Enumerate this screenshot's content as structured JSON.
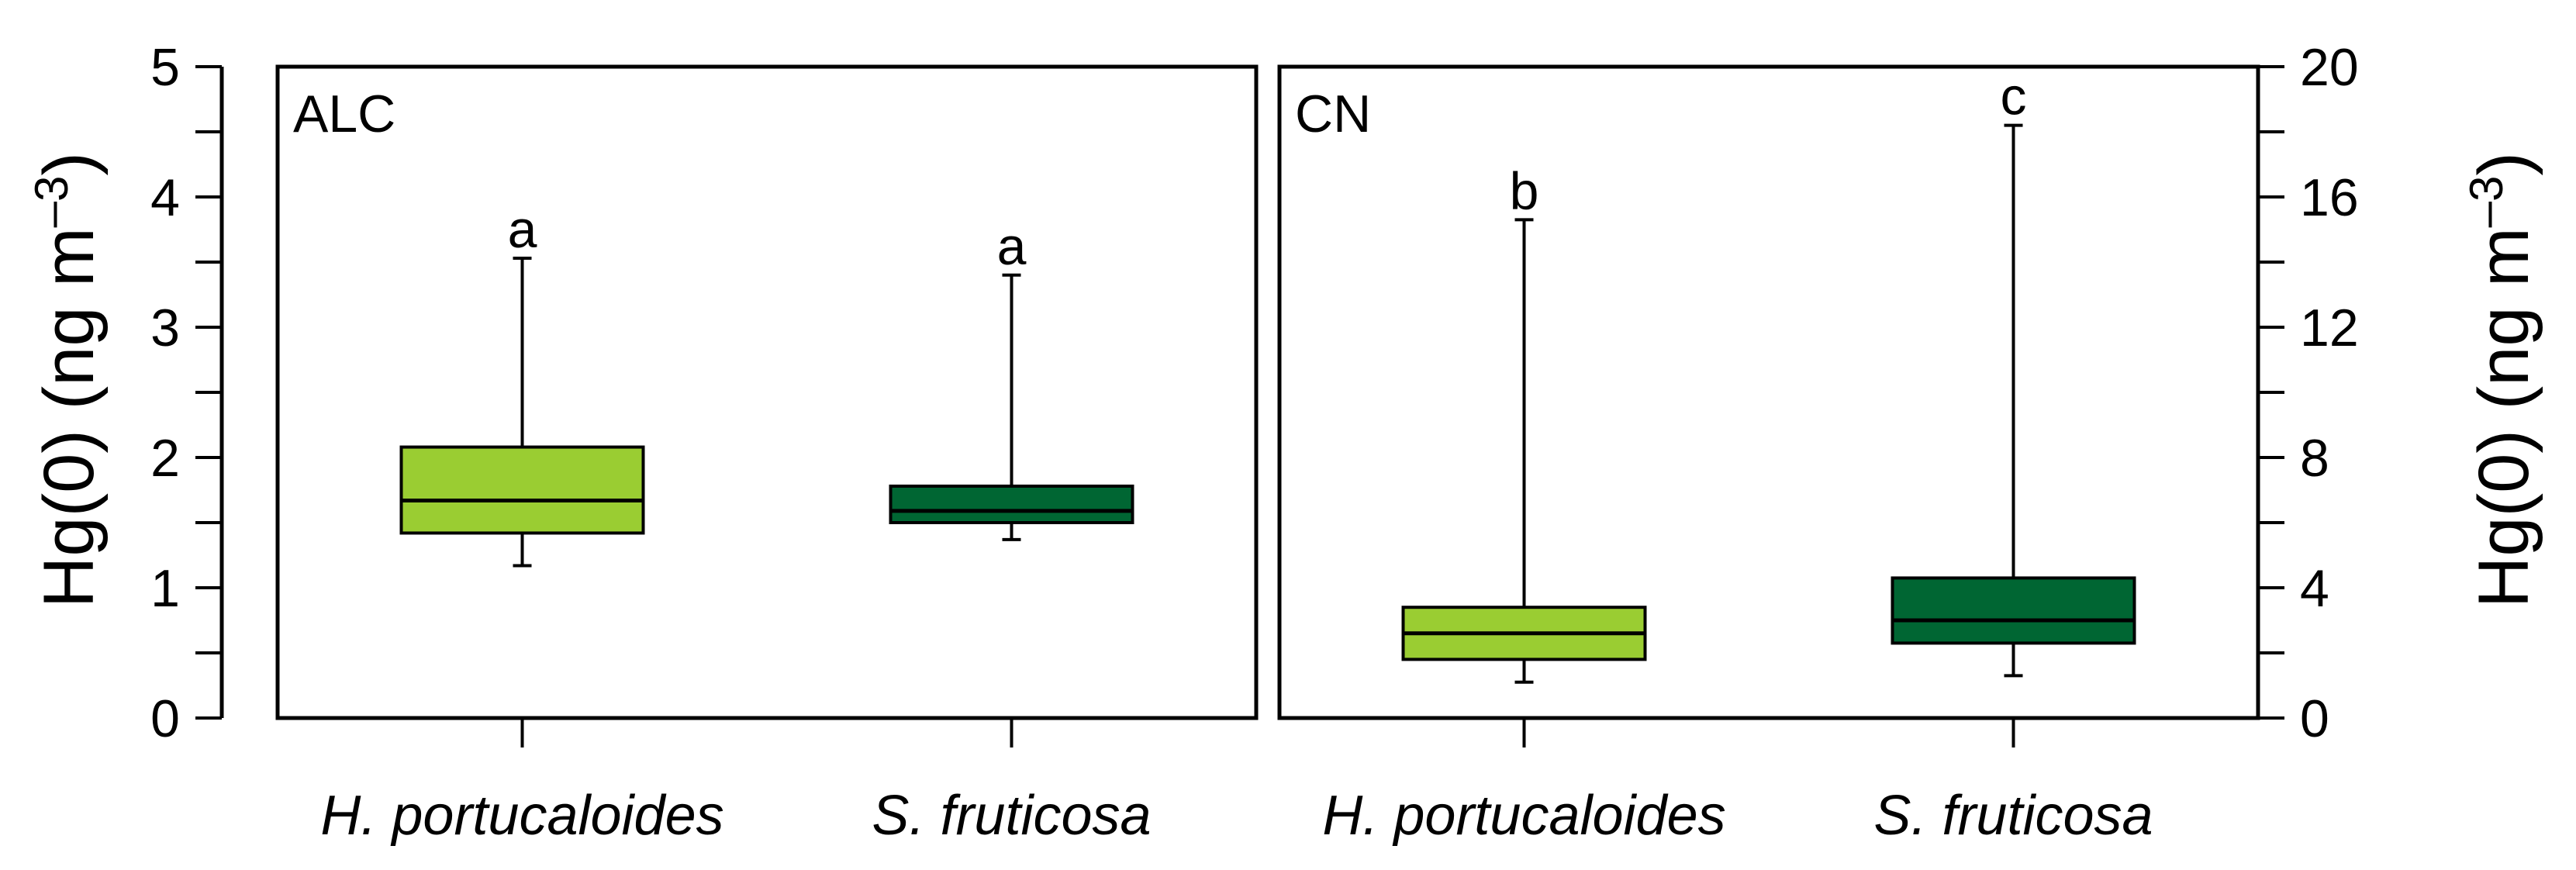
{
  "colors": {
    "h_portucaloides": "#9ACD32",
    "s_fruticosa": "#006633"
  },
  "chart_data": [
    {
      "type": "boxplot",
      "panel_label": "ALC",
      "ylabel": "Hg(0) (ng m",
      "ylabel_sup": "–3",
      "ylabel_close": ")",
      "ylim": [
        0,
        5
      ],
      "yticks": [
        0,
        1,
        2,
        3,
        4,
        5
      ],
      "categories": [
        "H. portucaloides",
        "S. fruticosa"
      ],
      "boxes": [
        {
          "category": "H. portucaloides",
          "whisker_low": 1.17,
          "q1": 1.42,
          "median": 1.67,
          "q3": 2.08,
          "whisker_high": 3.53,
          "letter": "a",
          "color_key": "h_portucaloides"
        },
        {
          "category": "S. fruticosa",
          "whisker_low": 1.37,
          "q1": 1.5,
          "median": 1.59,
          "q3": 1.78,
          "whisker_high": 3.4,
          "letter": "a",
          "color_key": "s_fruticosa"
        }
      ]
    },
    {
      "type": "boxplot",
      "panel_label": "CN",
      "ylabel": "Hg(0) (ng m",
      "ylabel_sup": "–3",
      "ylabel_close": ")",
      "ylim": [
        0,
        20
      ],
      "yticks": [
        0,
        4,
        8,
        12,
        16,
        20
      ],
      "categories": [
        "H. portucaloides",
        "S. fruticosa"
      ],
      "boxes": [
        {
          "category": "H. portucaloides",
          "whisker_low": 1.1,
          "q1": 1.8,
          "median": 2.6,
          "q3": 3.4,
          "whisker_high": 15.3,
          "letter": "b",
          "color_key": "h_portucaloides"
        },
        {
          "category": "S. fruticosa",
          "whisker_low": 1.3,
          "q1": 2.3,
          "median": 3.0,
          "q3": 4.3,
          "whisker_high": 18.2,
          "letter": "c",
          "color_key": "s_fruticosa"
        }
      ]
    }
  ]
}
